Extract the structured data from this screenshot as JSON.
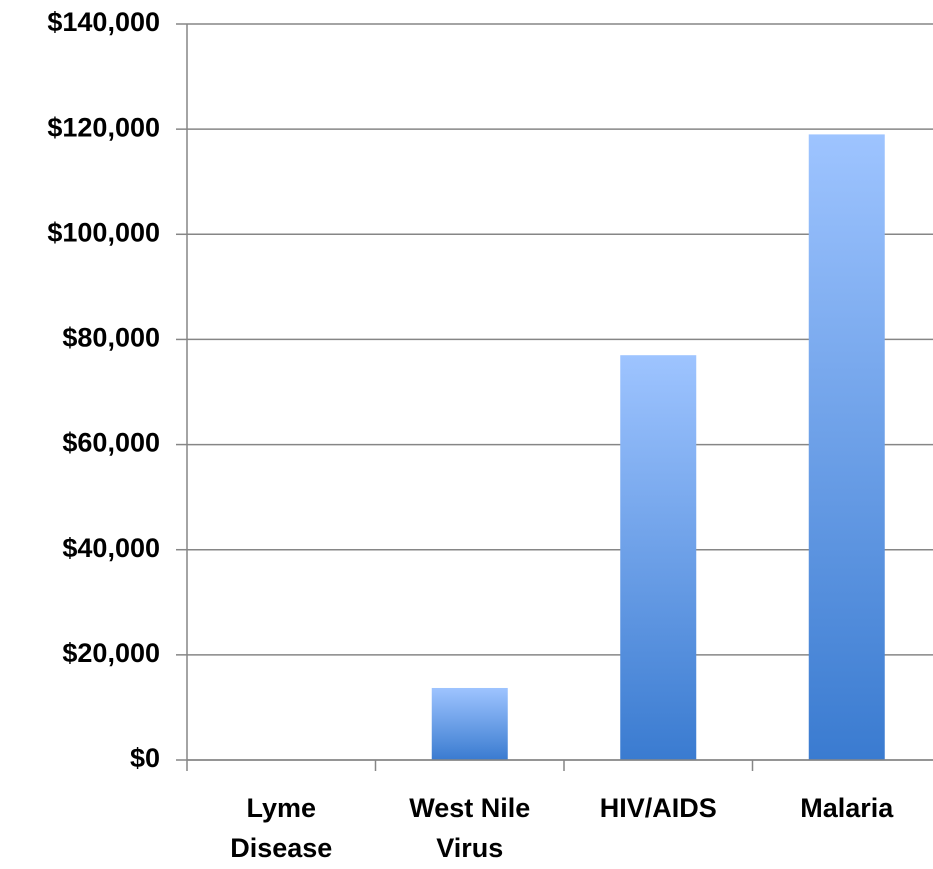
{
  "chart_data": {
    "type": "bar",
    "categories": [
      "Lyme Disease",
      "West Nile Virus",
      "HIV/AIDS",
      "Malaria"
    ],
    "values": [
      0,
      13700,
      77000,
      119000
    ],
    "gradient": [
      "#9ec4ff",
      "#3a7bd0"
    ],
    "ylim": [
      0,
      140000
    ],
    "yticks": [
      {
        "value": 0,
        "label": "$0"
      },
      {
        "value": 20000,
        "label": "$20,000"
      },
      {
        "value": 40000,
        "label": "$40,000"
      },
      {
        "value": 60000,
        "label": "$60,000"
      },
      {
        "value": 80000,
        "label": "$80,000"
      },
      {
        "value": 100000,
        "label": "$100,000"
      },
      {
        "value": 120000,
        "label": "$120,000"
      },
      {
        "value": 140000,
        "label": "$140,000"
      }
    ],
    "grid": true
  }
}
